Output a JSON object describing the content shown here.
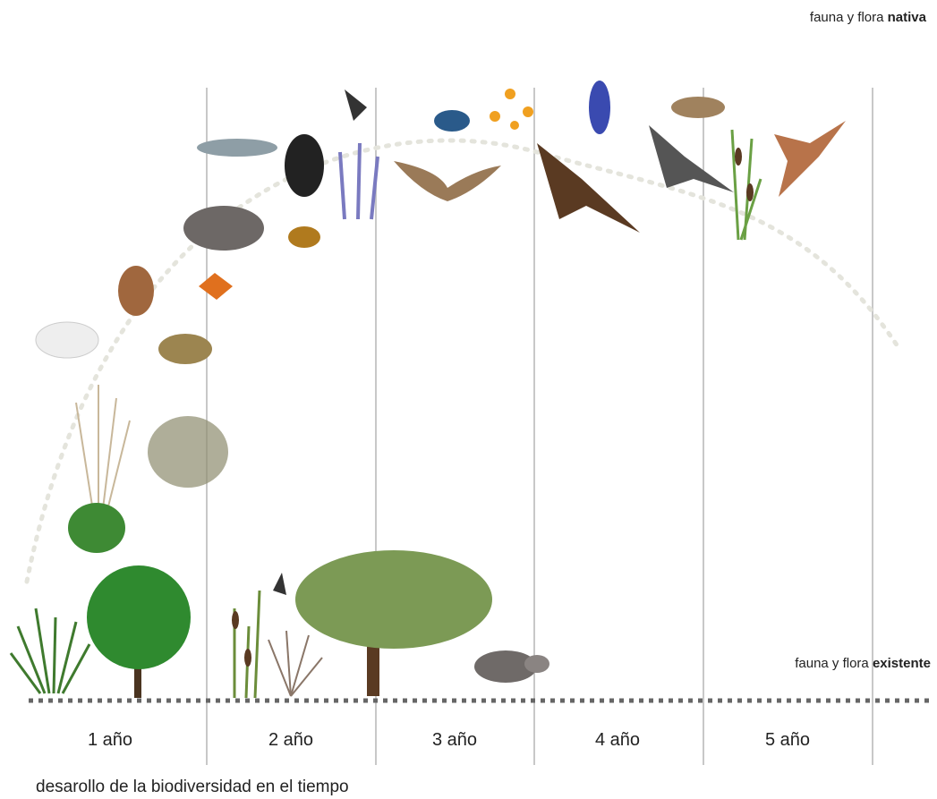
{
  "labels": {
    "native": {
      "text": "fauna y flora",
      "bold": "nativa"
    },
    "existing": {
      "text": "fauna y flora",
      "bold": "existente"
    }
  },
  "timeline": [
    "1 año",
    "2 año",
    "3 año",
    "4 año",
    "5 año"
  ],
  "caption": "desarollo de la biodiversidad en el tiempo"
}
